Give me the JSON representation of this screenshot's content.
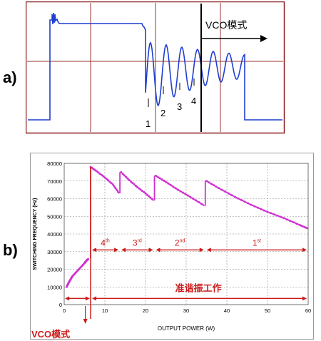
{
  "figure": {
    "label_a": "a)",
    "label_b": "b)"
  },
  "chart_data": [
    {
      "type": "line",
      "panel": "a",
      "waveform_description": "oscilloscope waveform",
      "annotation": "VCO模式",
      "valley_labels": [
        "1",
        "2",
        "3",
        "4"
      ],
      "colors": {
        "trace": "#1f3fd0",
        "frame": "#8a1e1e",
        "grid": "#9a3030",
        "marker": "#000000"
      }
    },
    {
      "type": "line",
      "panel": "b",
      "title": "",
      "xlabel": "OUTPUT POWER (W)",
      "ylabel": "SWITCHING FREQUENCY (Hz)",
      "xlim": [
        0,
        60
      ],
      "ylim": [
        0,
        80000
      ],
      "x_ticks": [
        0,
        10,
        20,
        30,
        40,
        50,
        60
      ],
      "y_ticks": [
        0,
        10000,
        20000,
        30000,
        40000,
        50000,
        60000,
        70000,
        80000
      ],
      "grid": true,
      "series": [
        {
          "segment": "vco",
          "x": [
            0.6,
            1.0,
            1.5,
            2.0,
            3.0,
            4.0,
            5.0,
            5.5,
            6.0
          ],
          "y": [
            10000,
            12000,
            14000,
            16000,
            18500,
            21000,
            23500,
            25000,
            26000
          ]
        },
        {
          "segment": "4th",
          "x": [
            6.5,
            8,
            10,
            12,
            13.5
          ],
          "y": [
            78000,
            75500,
            72000,
            68000,
            63000
          ]
        },
        {
          "segment": "3rd",
          "x": [
            14,
            16,
            18,
            20,
            22
          ],
          "y": [
            75000,
            70500,
            66500,
            63000,
            59000
          ]
        },
        {
          "segment": "2nd",
          "x": [
            22.5,
            25,
            28,
            31,
            34.5
          ],
          "y": [
            73000,
            69500,
            65000,
            61000,
            56000
          ]
        },
        {
          "segment": "1st",
          "x": [
            35,
            38,
            42,
            46,
            50,
            54,
            58,
            60
          ],
          "y": [
            70000,
            66000,
            61000,
            56500,
            52500,
            49000,
            45000,
            43000
          ]
        }
      ],
      "jumps": [
        {
          "x": 6.5,
          "from": 26000,
          "to": 78000
        },
        {
          "x": 13.7,
          "from": 63000,
          "to": 75000
        },
        {
          "x": 22.2,
          "from": 59000,
          "to": 73000
        },
        {
          "x": 34.7,
          "from": 56000,
          "to": 70000
        }
      ],
      "mode_labels": [
        {
          "text": "4th",
          "base": "4",
          "sup": "th",
          "x_range": [
            6.5,
            13.7
          ]
        },
        {
          "text": "3rd",
          "base": "3",
          "sup": "rd",
          "x_range": [
            13.7,
            22.2
          ]
        },
        {
          "text": "2nd",
          "base": "2",
          "sup": "nd",
          "x_range": [
            22.2,
            34.7
          ]
        },
        {
          "text": "1st",
          "base": "1",
          "sup": "st",
          "x_range": [
            34.7,
            60
          ]
        }
      ],
      "qr_label": "准谐振工作",
      "vco_label": "VCO模式",
      "colors": {
        "curve": "#d030d0",
        "arrow": "#cc1a1a",
        "text": "#cc1a1a"
      }
    }
  ]
}
